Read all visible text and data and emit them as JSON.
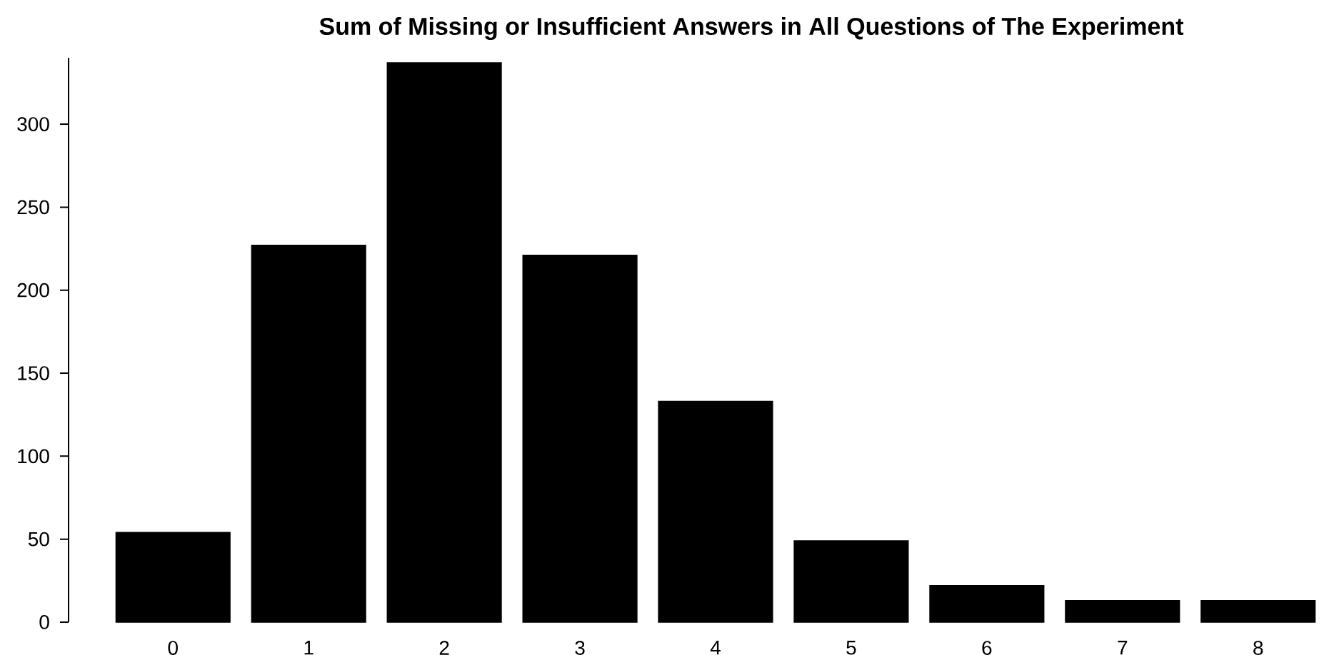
{
  "chart_data": {
    "type": "bar",
    "title": "Sum of Missing or Insufficient Answers in All Questions of The Experiment",
    "categories": [
      "0",
      "1",
      "2",
      "3",
      "4",
      "5",
      "6",
      "7",
      "8"
    ],
    "values": [
      54,
      227,
      337,
      221,
      133,
      49,
      22,
      13,
      13
    ],
    "color": "#000000",
    "ylim": [
      0,
      340
    ],
    "yticks": [
      0,
      50,
      100,
      150,
      200,
      250,
      300
    ]
  }
}
